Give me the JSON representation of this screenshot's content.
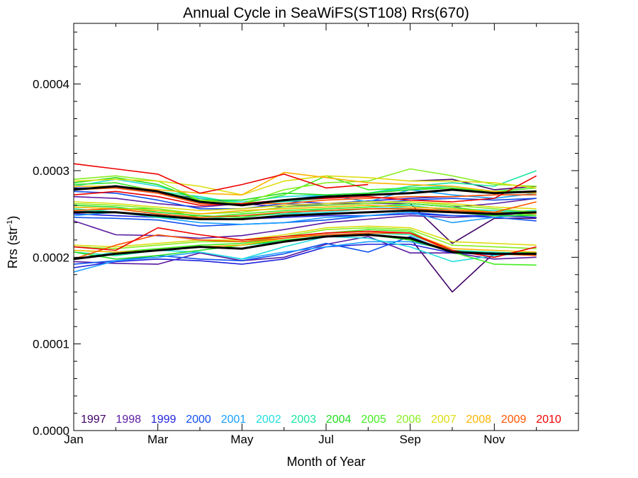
{
  "chart_data": {
    "type": "line",
    "title": "Annual Cycle in SeaWiFS(ST108) Rrs(670)",
    "xlabel": "Month of Year",
    "ylabel_main": "Rrs (str",
    "ylabel_sup": "-1",
    "ylabel_close": ")",
    "xlim": [
      1,
      13
    ],
    "ylim": [
      0,
      0.00047
    ],
    "x_ticks": [
      {
        "x": 1,
        "label": "Jan"
      },
      {
        "x": 3,
        "label": "Mar"
      },
      {
        "x": 5,
        "label": "May"
      },
      {
        "x": 7,
        "label": "Jul"
      },
      {
        "x": 9,
        "label": "Sep"
      },
      {
        "x": 11,
        "label": "Nov"
      }
    ],
    "y_ticks": [
      {
        "y": 0,
        "label": "0.0000"
      },
      {
        "y": 0.0001,
        "label": "0.0001"
      },
      {
        "y": 0.0002,
        "label": "0.0002"
      },
      {
        "y": 0.0003,
        "label": "0.0003"
      },
      {
        "y": 0.0004,
        "label": "0.0004"
      }
    ],
    "x": [
      1,
      2,
      3,
      4,
      5,
      6,
      7,
      8,
      9,
      10,
      11,
      12
    ],
    "series": [
      {
        "name": "1997",
        "color": "#3f0066",
        "lines": [
          [
            null,
            null,
            null,
            null,
            null,
            null,
            null,
            null,
            0.000288,
            0.00029,
            0.000278,
            0.000282
          ],
          [
            null,
            null,
            null,
            null,
            null,
            null,
            null,
            null,
            0.000262,
            0.000216,
            0.000245,
            0.000245
          ],
          [
            null,
            null,
            null,
            null,
            null,
            null,
            null,
            null,
            0.000222,
            0.00016,
            0.000205,
            0.000205
          ]
        ]
      },
      {
        "name": "1998",
        "color": "#5a1aa0",
        "lines": [
          [
            0.00027,
            0.000268,
            0.000262,
            0.000258,
            0.000262,
            0.000258,
            0.000262,
            0.000262,
            0.000262,
            0.000258,
            0.000262,
            0.000268
          ],
          [
            0.000242,
            0.000226,
            0.000225,
            0.000222,
            0.000225,
            0.000232,
            0.00024,
            0.000244,
            0.000248,
            0.000246,
            0.000248,
            0.000252
          ],
          [
            0.000195,
            0.000193,
            0.000192,
            0.000205,
            0.000196,
            0.0002,
            0.000215,
            0.000224,
            0.000205,
            0.000205,
            0.000198,
            0.0002
          ]
        ]
      },
      {
        "name": "1999",
        "color": "#2222dd",
        "lines": [
          [
            0.00028,
            0.00028,
            0.000274,
            0.000268,
            0.000262,
            0.000265,
            0.000262,
            0.000265,
            0.000268,
            0.00027,
            0.000272,
            0.000272
          ],
          [
            0.00025,
            0.000248,
            0.000246,
            0.000244,
            0.000244,
            0.000246,
            0.000248,
            0.000248,
            0.00025,
            0.000248,
            0.000248,
            0.000246
          ],
          [
            0.000188,
            0.000195,
            0.000198,
            0.000196,
            0.000192,
            0.000198,
            0.000212,
            0.000215,
            0.000215,
            0.000205,
            0.000205,
            0.000203
          ]
        ]
      },
      {
        "name": "2000",
        "color": "#1050ee",
        "lines": [
          [
            0.000276,
            0.000274,
            0.000266,
            0.000256,
            0.000256,
            0.000262,
            0.00026,
            0.000262,
            0.000266,
            0.000268,
            0.000266,
            0.000268
          ],
          [
            0.000246,
            0.000245,
            0.000243,
            0.000236,
            0.000238,
            0.00024,
            0.000243,
            0.000248,
            0.000252,
            0.000248,
            0.000246,
            0.000242
          ],
          [
            0.000192,
            0.000196,
            0.000202,
            0.000198,
            0.000196,
            0.000204,
            0.000216,
            0.000206,
            0.000224,
            0.000205,
            0.000203,
            0.000204
          ]
        ]
      },
      {
        "name": "2001",
        "color": "#1a9fff",
        "lines": [
          [
            0.000284,
            0.000286,
            0.000276,
            0.000264,
            0.000262,
            0.000266,
            0.000272,
            0.000264,
            0.000278,
            0.000272,
            0.000268,
            0.000274
          ],
          [
            0.000248,
            0.000252,
            0.000246,
            0.00024,
            0.000238,
            0.00024,
            0.000246,
            0.000248,
            0.000252,
            0.00024,
            0.000246,
            0.00025
          ],
          [
            0.000183,
            0.000196,
            0.0002,
            0.000206,
            0.000198,
            0.000206,
            0.000212,
            0.000218,
            0.000218,
            0.000208,
            0.000204,
            0.000203
          ]
        ]
      },
      {
        "name": "2002",
        "color": "#22dddd",
        "lines": [
          [
            0.000282,
            0.00029,
            0.000282,
            0.000268,
            0.000264,
            0.00027,
            0.000272,
            0.000274,
            0.00028,
            0.000282,
            0.000276,
            0.000274
          ],
          [
            0.000252,
            0.000256,
            0.00025,
            0.000246,
            0.000248,
            0.00025,
            0.000252,
            0.000256,
            0.000258,
            0.000256,
            0.000254,
            0.000252
          ],
          [
            0.000198,
            0.000206,
            0.000208,
            0.000206,
            0.000198,
            0.000212,
            0.000224,
            0.000222,
            0.000212,
            0.000195,
            0.000202,
            0.000205
          ]
        ]
      },
      {
        "name": "2003",
        "color": "#1ae6a0",
        "lines": [
          [
            0.000278,
            0.000282,
            0.000276,
            0.00027,
            0.000262,
            0.000264,
            0.000268,
            0.000274,
            0.000282,
            0.000286,
            0.000282,
            0.0003
          ],
          [
            0.000256,
            0.000252,
            0.000246,
            0.000244,
            0.000248,
            0.00025,
            0.000256,
            0.000258,
            0.00026,
            0.000254,
            0.000252,
            0.000254
          ],
          [
            0.000206,
            0.000202,
            0.000208,
            0.000212,
            0.000214,
            0.000218,
            0.000226,
            0.000228,
            0.000226,
            0.000208,
            0.000206,
            0.000204
          ]
        ]
      },
      {
        "name": "2004",
        "color": "#22dd22",
        "lines": [
          [
            0.000286,
            0.000292,
            0.000284,
            0.000266,
            0.000266,
            0.000274,
            0.000272,
            0.000274,
            0.000278,
            0.00028,
            0.000276,
            0.000276
          ],
          [
            0.00026,
            0.000258,
            0.000252,
            0.000248,
            0.000246,
            0.000252,
            0.000254,
            0.000256,
            0.000256,
            0.000252,
            0.000248,
            0.000248
          ],
          [
            0.000206,
            0.000198,
            0.000202,
            0.000208,
            0.000214,
            0.00022,
            0.000224,
            0.000226,
            0.00022,
            0.000206,
            0.000204,
            0.000206
          ]
        ]
      },
      {
        "name": "2005",
        "color": "#44ee22",
        "lines": [
          [
            0.000284,
            0.000286,
            0.000276,
            0.000266,
            0.000262,
            0.000272,
            0.000294,
            0.000278,
            0.00028,
            0.00028,
            0.000276,
            0.00028
          ],
          [
            0.000258,
            0.000256,
            0.000256,
            0.000246,
            0.00025,
            0.000254,
            0.000256,
            0.000258,
            0.000262,
            0.000258,
            0.000252,
            0.000248
          ],
          [
            0.000208,
            0.000206,
            0.00021,
            0.000214,
            0.000216,
            0.000222,
            0.000228,
            0.000232,
            0.00023,
            0.000206,
            0.000192,
            0.000191
          ]
        ]
      },
      {
        "name": "2006",
        "color": "#88ee22",
        "lines": [
          [
            0.00029,
            0.000294,
            0.000288,
            0.000266,
            0.000262,
            0.000278,
            0.000286,
            0.000288,
            0.000302,
            0.000294,
            0.000284,
            0.000282
          ],
          [
            0.000262,
            0.00026,
            0.000256,
            0.00025,
            0.000252,
            0.000258,
            0.00026,
            0.000262,
            0.000264,
            0.00026,
            0.000256,
            0.000252
          ],
          [
            0.000212,
            0.00021,
            0.000214,
            0.000218,
            0.000218,
            0.000224,
            0.000232,
            0.000234,
            0.000232,
            0.000214,
            0.000212,
            0.00021
          ]
        ]
      },
      {
        "name": "2007",
        "color": "#dddd11",
        "lines": [
          [
            0.000288,
            0.00029,
            0.000288,
            0.000282,
            0.000272,
            0.000288,
            0.000294,
            0.000292,
            0.000288,
            0.000288,
            0.000286,
            0.00028
          ],
          [
            0.000264,
            0.000262,
            0.000258,
            0.000254,
            0.000256,
            0.00026,
            0.000262,
            0.000264,
            0.000264,
            0.000262,
            0.000258,
            0.000256
          ],
          [
            0.000214,
            0.000212,
            0.000216,
            0.00022,
            0.00022,
            0.000226,
            0.000234,
            0.000236,
            0.000234,
            0.000218,
            0.000216,
            0.000214
          ]
        ]
      },
      {
        "name": "2008",
        "color": "#ffb300",
        "lines": [
          [
            0.000282,
            0.000282,
            0.000278,
            0.000274,
            0.000272,
            0.000298,
            0.000292,
            0.000286,
            0.000284,
            0.000282,
            0.000276,
            0.000274
          ],
          [
            0.000258,
            0.000256,
            0.000254,
            0.00025,
            0.000254,
            0.000256,
            0.000258,
            0.00026,
            0.000258,
            0.000256,
            0.000252,
            0.00025
          ],
          [
            0.000208,
            0.000206,
            0.000208,
            0.000212,
            0.000214,
            0.000222,
            0.000228,
            0.00023,
            0.000228,
            0.00021,
            0.000208,
            0.000206
          ]
        ]
      },
      {
        "name": "2009",
        "color": "#ff5500",
        "lines": [
          [
            0.000278,
            0.00028,
            0.000274,
            0.000262,
            0.000262,
            0.000262,
            0.000266,
            0.000268,
            0.00027,
            0.00027,
            0.000272,
            0.000272
          ],
          [
            0.000254,
            0.000256,
            0.00025,
            0.000246,
            0.000248,
            0.000252,
            0.000254,
            0.000256,
            0.000256,
            0.000254,
            0.000252,
            0.000264
          ],
          [
            0.000198,
            0.000214,
            0.000226,
            0.00022,
            0.000218,
            0.000222,
            0.000226,
            0.000228,
            0.000228,
            0.000206,
            0.000204,
            0.000202
          ]
        ]
      },
      {
        "name": "2010",
        "color": "#ee0000",
        "lines": [
          [
            0.000308,
            0.000302,
            0.000296,
            0.000274,
            0.000284,
            0.000296,
            0.00028,
            0.000284,
            null,
            null,
            null,
            null
          ],
          [
            0.000272,
            0.000276,
            0.00027,
            0.00026,
            0.000262,
            0.000266,
            0.000268,
            0.00027,
            0.000266,
            0.000264,
            0.000268,
            0.000294
          ],
          [
            0.000212,
            0.000208,
            0.000234,
            0.000226,
            0.00022,
            0.000224,
            0.000228,
            0.00023,
            0.000228,
            0.000208,
            0.0002,
            0.000212
          ]
        ]
      },
      {
        "name": "",
        "color": "#000000",
        "bold": true,
        "lines": [
          [
            0.000278,
            0.000282,
            0.000276,
            0.000264,
            0.00026,
            0.000266,
            0.00027,
            0.000272,
            0.000274,
            0.000278,
            0.000274,
            0.000276
          ],
          [
            0.000252,
            0.000252,
            0.000248,
            0.000244,
            0.000244,
            0.000248,
            0.00025,
            0.000252,
            0.000254,
            0.000252,
            0.00025,
            0.000252
          ],
          [
            0.000198,
            0.000204,
            0.000208,
            0.000212,
            0.00021,
            0.000218,
            0.000224,
            0.000226,
            0.000222,
            0.000206,
            0.000204,
            0.000204
          ]
        ]
      }
    ],
    "legend": [
      {
        "label": "1997",
        "color": "#3f0066"
      },
      {
        "label": "1998",
        "color": "#5a1aa0"
      },
      {
        "label": "1999",
        "color": "#2222dd"
      },
      {
        "label": "2000",
        "color": "#1050ee"
      },
      {
        "label": "2001",
        "color": "#1a9fff"
      },
      {
        "label": "2002",
        "color": "#22dddd"
      },
      {
        "label": "2003",
        "color": "#1ae6a0"
      },
      {
        "label": "2004",
        "color": "#22dd22"
      },
      {
        "label": "2005",
        "color": "#44ee22"
      },
      {
        "label": "2006",
        "color": "#88ee22"
      },
      {
        "label": "2007",
        "color": "#dddd11"
      },
      {
        "label": "2008",
        "color": "#ffb300"
      },
      {
        "label": "2009",
        "color": "#ff5500"
      },
      {
        "label": "2010",
        "color": "#ee0000"
      }
    ],
    "legend_position": "bottom",
    "grid": false
  }
}
